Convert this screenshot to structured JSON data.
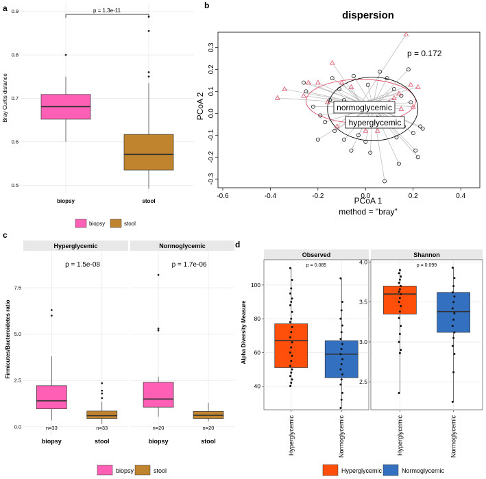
{
  "colors": {
    "biopsy": "#FF5FB4",
    "stool": "#C0832E",
    "hyperglycemic": "#FF4F0A",
    "normoglycemic": "#3470C0",
    "grid": "#E6E6E6",
    "strip": "#E8E8E8",
    "triangle": "#DF536B",
    "hyperEllipse": "#DF536B"
  },
  "panel_a": {
    "letter": "a",
    "ylabel": "Bray Curtis distance",
    "pvalue": "p = 1.3e-11",
    "legend": [
      "biopsy",
      "stool"
    ],
    "chart_data": {
      "type": "boxplot",
      "categories": [
        "biopsy",
        "stool"
      ],
      "ylim": [
        0.48,
        0.92
      ],
      "yticks": [
        "0.5",
        "0.6",
        "0.7",
        "0.8",
        "0.9"
      ],
      "boxes": [
        {
          "name": "biopsy",
          "q1": 0.652,
          "median": 0.681,
          "q3": 0.709,
          "lo": 0.6,
          "hi": 0.75,
          "outliers": [
            0.8
          ]
        },
        {
          "name": "stool",
          "q1": 0.535,
          "median": 0.571,
          "q3": 0.617,
          "lo": 0.492,
          "hi": 0.735,
          "outliers": [
            0.75,
            0.76,
            0.855,
            0.888
          ]
        }
      ]
    }
  },
  "panel_b": {
    "letter": "b",
    "title": "dispersion",
    "xlabel": "PCoA 1",
    "ylabel": "PCoA 2",
    "subtitle": "method = \"bray\"",
    "pvalue": "p = 0.172",
    "label_normo": "normoglycemic",
    "label_hyper": "hyperglycemic",
    "chart_data": {
      "type": "scatter",
      "xlim": [
        -0.62,
        0.48
      ],
      "ylim": [
        -0.34,
        0.37
      ],
      "xticks": [
        "-0.6",
        "-0.4",
        "-0.2",
        "0.0",
        "0.2",
        "0.4"
      ],
      "yticks": [
        "-0.3",
        "-0.2",
        "-0.1",
        "0.0",
        "0.1",
        "0.2",
        "0.3"
      ],
      "centroids": {
        "normoglycemic": [
          0.03,
          0.03
        ],
        "hyperglycemic": [
          -0.02,
          0.045
        ]
      },
      "ellipses": {
        "normoglycemic": {
          "cx": 0.03,
          "cy": 0.02,
          "rx": 0.19,
          "ry": 0.145
        },
        "hyperglycemic": {
          "cx": -0.02,
          "cy": 0.055,
          "rx": 0.23,
          "ry": 0.1
        }
      },
      "circles": [
        [
          -0.26,
          0.14
        ],
        [
          -0.25,
          0.1
        ],
        [
          -0.22,
          0.03
        ],
        [
          -0.19,
          -0.01
        ],
        [
          -0.17,
          -0.04
        ],
        [
          -0.15,
          0.06
        ],
        [
          -0.13,
          -0.08
        ],
        [
          -0.11,
          0.11
        ],
        [
          -0.09,
          -0.12
        ],
        [
          -0.07,
          0.02
        ],
        [
          -0.06,
          -0.17
        ],
        [
          -0.05,
          0.17
        ],
        [
          -0.03,
          -0.1
        ],
        [
          0.0,
          -0.13
        ],
        [
          0.01,
          0.13
        ],
        [
          0.02,
          -0.18
        ],
        [
          0.05,
          -0.02
        ],
        [
          0.06,
          0.19
        ],
        [
          0.08,
          -0.31
        ],
        [
          0.09,
          0.16
        ],
        [
          0.11,
          -0.04
        ],
        [
          0.12,
          0.11
        ],
        [
          0.13,
          -0.11
        ],
        [
          0.14,
          -0.23
        ],
        [
          0.15,
          0.08
        ],
        [
          0.16,
          -0.06
        ],
        [
          0.18,
          0.2
        ],
        [
          0.19,
          0.05
        ],
        [
          0.2,
          -0.09
        ],
        [
          0.21,
          -0.17
        ],
        [
          0.22,
          -0.2
        ],
        [
          0.23,
          -0.06
        ],
        [
          -0.2,
          -0.12
        ],
        [
          -0.14,
          0.16
        ],
        [
          -0.09,
          0.06
        ],
        [
          0.24,
          -0.07
        ]
      ],
      "triangles": [
        [
          -0.37,
          0.07
        ],
        [
          -0.34,
          0.11
        ],
        [
          -0.26,
          0.08
        ],
        [
          -0.24,
          0.14
        ],
        [
          -0.2,
          0.14
        ],
        [
          -0.16,
          0.05
        ],
        [
          -0.14,
          0.23
        ],
        [
          -0.12,
          -0.06
        ],
        [
          -0.1,
          0.14
        ],
        [
          -0.06,
          0.12
        ],
        [
          0.0,
          -0.08
        ],
        [
          0.05,
          -0.08
        ],
        [
          0.1,
          0.05
        ],
        [
          0.12,
          0.07
        ],
        [
          0.14,
          0.09
        ],
        [
          0.15,
          0.02
        ],
        [
          0.17,
          0.36
        ],
        [
          0.19,
          0.13
        ],
        [
          0.2,
          0.03
        ],
        [
          0.22,
          0.12
        ]
      ]
    }
  },
  "panel_c": {
    "letter": "c",
    "ylabel": "Firmicutes/Bacteroidetes ratio",
    "facets": [
      {
        "title": "Hyperglycemic",
        "pvalue": "p = 1.5e-08",
        "n": [
          "n=33",
          "n=33"
        ]
      },
      {
        "title": "Normoglycemic",
        "pvalue": "p = 1.7e-06",
        "n": [
          "n=20",
          "n=20"
        ]
      }
    ],
    "legend": [
      "biopsy",
      "stool"
    ],
    "chart_data": {
      "type": "boxplot",
      "categories": [
        "biopsy",
        "stool"
      ],
      "ylim": [
        -0.45,
        9.5
      ],
      "yticks": [
        "0.0",
        "2.5",
        "5.0",
        "7.5"
      ],
      "series": [
        {
          "facet": "Hyperglycemic",
          "boxes": [
            {
              "name": "biopsy",
              "q1": 0.97,
              "median": 1.4,
              "q3": 2.22,
              "lo": 0.35,
              "hi": 3.8,
              "outliers": [
                6.0,
                6.3
              ]
            },
            {
              "name": "stool",
              "q1": 0.45,
              "median": 0.6,
              "q3": 0.85,
              "lo": 0.15,
              "hi": 1.35,
              "outliers": [
                1.55,
                1.8,
                1.95,
                2.35
              ]
            }
          ]
        },
        {
          "facet": "Normoglycemic",
          "boxes": [
            {
              "name": "biopsy",
              "q1": 1.06,
              "median": 1.5,
              "q3": 2.4,
              "lo": 0.55,
              "hi": 2.7,
              "outliers": [
                5.2,
                5.3,
                8.2
              ]
            },
            {
              "name": "stool",
              "q1": 0.45,
              "median": 0.62,
              "q3": 0.83,
              "lo": 0.3,
              "hi": 1.3,
              "outliers": []
            }
          ]
        }
      ]
    }
  },
  "panel_d": {
    "letter": "d",
    "ylabel": "Alpha Diversity Measure",
    "legend": [
      "Hyperglycemic",
      "Normoglycemic"
    ],
    "facets": [
      {
        "title": "Observed",
        "pvalue": "p = 0.085",
        "yticks": [
          "40",
          "60",
          "80",
          "100"
        ],
        "ylim": [
          26,
          115
        ],
        "chart_data": {
          "type": "boxplot",
          "categories": [
            "Hyperglycemic",
            "Normoglycemic"
          ],
          "boxes": [
            {
              "name": "Hyperglycemic",
              "q1": 51,
              "median": 67,
              "q3": 77,
              "lo": 40,
              "hi": 110,
              "points": [
                40,
                42,
                44,
                46,
                48,
                50,
                52,
                55,
                58,
                60,
                63,
                66,
                69,
                72,
                75,
                78,
                80,
                84,
                88,
                90,
                92,
                95,
                98,
                103,
                110
              ]
            },
            {
              "name": "Normoglycemic",
              "q1": 45,
              "median": 59,
              "q3": 67,
              "lo": 27,
              "hi": 104,
              "points": [
                27,
                32,
                36,
                41,
                44,
                47,
                50,
                53,
                56,
                59,
                62,
                65,
                68,
                72,
                76,
                80,
                85,
                90,
                104
              ]
            }
          ]
        }
      },
      {
        "title": "Shannon",
        "pvalue": "p = 0.099",
        "yticks": [
          "2.5",
          "3.0",
          "3.5",
          "4.0"
        ],
        "ylim": [
          2.15,
          4.03
        ],
        "chart_data": {
          "type": "boxplot",
          "categories": [
            "Hyperglycemic",
            "Normoglycemic"
          ],
          "boxes": [
            {
              "name": "Hyperglycemic",
              "q1": 3.35,
              "median": 3.6,
              "q3": 3.7,
              "lo": 2.36,
              "hi": 3.91,
              "points": [
                2.36,
                2.86,
                2.9,
                3.0,
                3.1,
                3.2,
                3.3,
                3.38,
                3.45,
                3.5,
                3.55,
                3.6,
                3.63,
                3.66,
                3.7,
                3.74,
                3.78,
                3.82,
                3.86,
                3.9
              ]
            },
            {
              "name": "Normoglycemic",
              "q1": 3.12,
              "median": 3.38,
              "q3": 3.62,
              "lo": 2.25,
              "hi": 3.93,
              "points": [
                2.25,
                2.62,
                2.85,
                2.95,
                3.05,
                3.12,
                3.2,
                3.28,
                3.36,
                3.42,
                3.5,
                3.57,
                3.62,
                3.7,
                3.8,
                3.93
              ]
            }
          ]
        }
      }
    ]
  }
}
